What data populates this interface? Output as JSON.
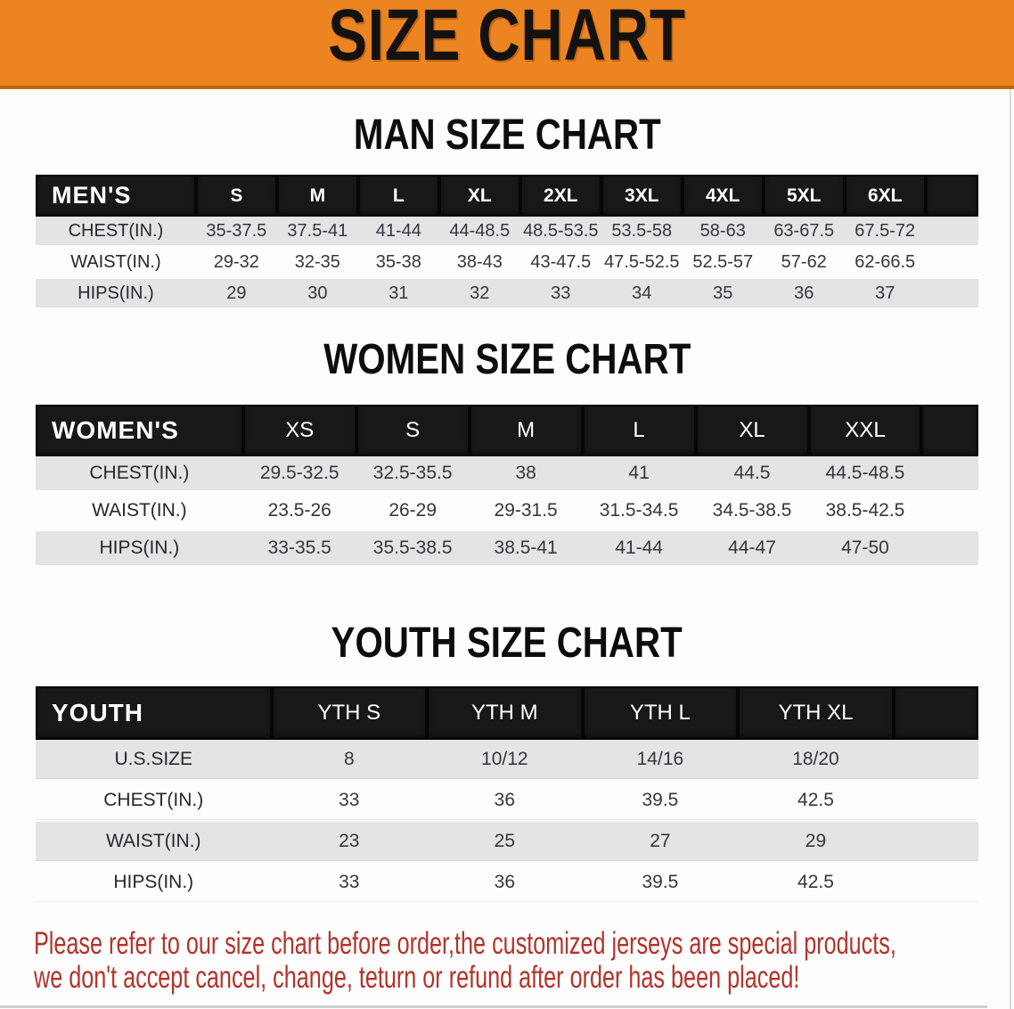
{
  "banner": {
    "title": "SIZE CHART"
  },
  "colors": {
    "banner_bg": "#EC8421",
    "banner_edge": "#C1660D",
    "header_bar": "#181818",
    "row_gray": "#E4E4E5",
    "row_white": "#FDFDFD",
    "footer_red": "#B2342B"
  },
  "sections": [
    {
      "heading": "MAN SIZE CHART",
      "label": "MEN'S",
      "columns": [
        "S",
        "M",
        "L",
        "XL",
        "2XL",
        "3XL",
        "4XL",
        "5XL",
        "6XL"
      ],
      "rows": [
        {
          "label": "CHEST(IN.)",
          "values": [
            "35-37.5",
            "37.5-41",
            "41-44",
            "44-48.5",
            "48.5-53.5",
            "53.5-58",
            "58-63",
            "63-67.5",
            "67.5-72"
          ]
        },
        {
          "label": "WAIST(IN.)",
          "values": [
            "29-32",
            "32-35",
            "35-38",
            "38-43",
            "43-47.5",
            "47.5-52.5",
            "52.5-57",
            "57-62",
            "62-66.5"
          ]
        },
        {
          "label": "HIPS(IN.)",
          "values": [
            "29",
            "30",
            "31",
            "32",
            "33",
            "34",
            "35",
            "36",
            "37"
          ]
        }
      ]
    },
    {
      "heading": "WOMEN SIZE CHART",
      "label": "WOMEN'S",
      "columns": [
        "XS",
        "S",
        "M",
        "L",
        "XL",
        "XXL"
      ],
      "rows": [
        {
          "label": "CHEST(IN.)",
          "values": [
            "29.5-32.5",
            "32.5-35.5",
            "38",
            "41",
            "44.5",
            "44.5-48.5"
          ]
        },
        {
          "label": "WAIST(IN.)",
          "values": [
            "23.5-26",
            "26-29",
            "29-31.5",
            "31.5-34.5",
            "34.5-38.5",
            "38.5-42.5"
          ]
        },
        {
          "label": "HIPS(IN.)",
          "values": [
            "33-35.5",
            "35.5-38.5",
            "38.5-41",
            "41-44",
            "44-47",
            "47-50"
          ]
        }
      ]
    },
    {
      "heading": "YOUTH SIZE CHART",
      "label": "YOUTH",
      "columns": [
        "YTH S",
        "YTH M",
        "YTH L",
        "YTH XL"
      ],
      "rows": [
        {
          "label": "U.S.SIZE",
          "values": [
            "8",
            "10/12",
            "14/16",
            "18/20"
          ]
        },
        {
          "label": "CHEST(IN.)",
          "values": [
            "33",
            "36",
            "39.5",
            "42.5"
          ]
        },
        {
          "label": "WAIST(IN.)",
          "values": [
            "23",
            "25",
            "27",
            "29"
          ]
        },
        {
          "label": "HIPS(IN.)",
          "values": [
            "33",
            "36",
            "39.5",
            "42.5"
          ]
        }
      ]
    }
  ],
  "footer": {
    "line1": "Please refer to our size chart before order,the customized jerseys are special products,",
    "line2": "we don't accept cancel, change, teturn or refund after order has been placed!"
  }
}
